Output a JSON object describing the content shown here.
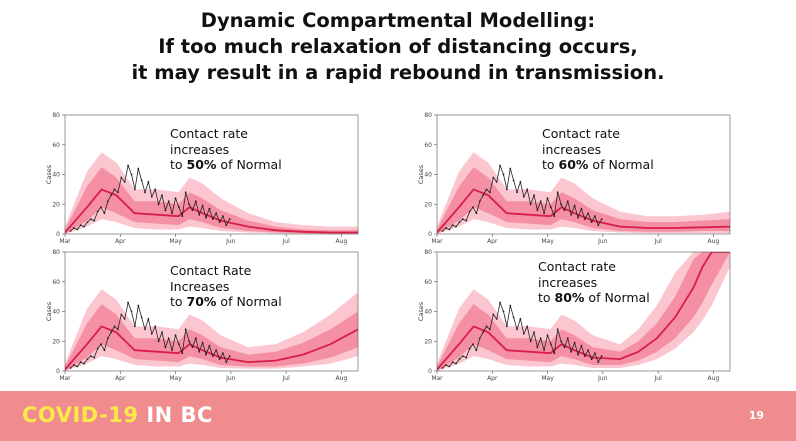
{
  "title": {
    "line1": "Dynamic Compartmental Modelling:",
    "line2": "If too much relaxation of distancing occurs,",
    "line3": "it may result in a rapid rebound in transmission."
  },
  "footer": {
    "brand_part1": "COVID-19",
    "brand_part2": "IN BC",
    "page_number": "19",
    "background_color": "#f08c8e",
    "brand_accent_color": "#fde84a"
  },
  "colors": {
    "band_outer": "#fbc6cf",
    "band_inner": "#f58fa3",
    "median_line": "#d81e4a",
    "observed_line": "#222222",
    "axis": "#555555"
  },
  "chart_data": [
    {
      "type": "line",
      "ylabel": "Cases",
      "xlabel": "",
      "x_ticks": [
        "Mar",
        "Apr",
        "May",
        "Jun",
        "Jul",
        "Aug"
      ],
      "y_ticks": [
        0,
        20,
        40,
        60,
        80
      ],
      "ylim": [
        0,
        80
      ],
      "annotation": {
        "line1": "Contact rate",
        "line2": "increases",
        "prefix": "to ",
        "pct": "50%",
        "suffix": " of Normal"
      },
      "observed": [
        2,
        4,
        3,
        6,
        5,
        8,
        10,
        9,
        15,
        18,
        14,
        22,
        26,
        30,
        28,
        38,
        35,
        46,
        40,
        30,
        44,
        36,
        28,
        35,
        25,
        30,
        20,
        26,
        16,
        22,
        14,
        24,
        18,
        12,
        28,
        20,
        16,
        22,
        13,
        19,
        11,
        17,
        10,
        14,
        8,
        12,
        6,
        10
      ],
      "series": [
        {
          "name": "median",
          "x": [
            0,
            12,
            20,
            28,
            38,
            50,
            62,
            68,
            75,
            85,
            100,
            115,
            130,
            145,
            160
          ],
          "values": [
            1,
            18,
            30,
            26,
            14,
            13,
            12,
            18,
            14,
            9,
            5,
            2.5,
            1.5,
            1,
            1
          ]
        },
        {
          "name": "inner_upper",
          "x": [
            0,
            12,
            20,
            28,
            38,
            50,
            62,
            68,
            75,
            85,
            100,
            115,
            130,
            145,
            160
          ],
          "values": [
            3,
            32,
            45,
            38,
            22,
            22,
            20,
            28,
            24,
            16,
            9,
            5,
            3,
            2.5,
            2.5
          ]
        },
        {
          "name": "inner_lower",
          "x": [
            0,
            12,
            20,
            28,
            38,
            50,
            62,
            68,
            75,
            85,
            100,
            115,
            130,
            145,
            160
          ],
          "values": [
            0,
            9,
            18,
            14,
            8,
            7,
            6,
            10,
            8,
            4,
            2,
            1,
            0.5,
            0.3,
            0.3
          ]
        },
        {
          "name": "outer_upper",
          "x": [
            0,
            12,
            20,
            28,
            38,
            50,
            62,
            68,
            75,
            85,
            100,
            115,
            130,
            145,
            160
          ],
          "values": [
            5,
            42,
            55,
            48,
            30,
            30,
            28,
            38,
            34,
            24,
            14,
            8,
            6,
            5,
            5
          ]
        },
        {
          "name": "outer_lower",
          "x": [
            0,
            12,
            20,
            28,
            38,
            50,
            62,
            68,
            75,
            85,
            100,
            115,
            130,
            145,
            160
          ],
          "values": [
            0,
            5,
            10,
            8,
            4,
            3,
            3,
            5,
            4,
            2,
            1,
            0.5,
            0.2,
            0,
            0
          ]
        }
      ]
    },
    {
      "type": "line",
      "ylabel": "Cases",
      "xlabel": "",
      "x_ticks": [
        "Mar",
        "Apr",
        "May",
        "Jun",
        "Jul",
        "Aug"
      ],
      "y_ticks": [
        0,
        20,
        40,
        60,
        80
      ],
      "ylim": [
        0,
        80
      ],
      "annotation": {
        "line1": "Contact rate",
        "line2": "increases",
        "prefix": "to ",
        "pct": "60%",
        "suffix": " of Normal"
      },
      "observed": [
        2,
        4,
        3,
        6,
        5,
        8,
        10,
        9,
        15,
        18,
        14,
        22,
        26,
        30,
        28,
        38,
        35,
        46,
        40,
        30,
        44,
        36,
        28,
        35,
        25,
        30,
        20,
        26,
        16,
        22,
        14,
        24,
        18,
        12,
        28,
        20,
        16,
        22,
        13,
        19,
        11,
        17,
        10,
        14,
        8,
        12,
        6,
        10
      ],
      "series": [
        {
          "name": "median",
          "x": [
            0,
            12,
            20,
            28,
            38,
            50,
            62,
            68,
            75,
            85,
            100,
            115,
            130,
            145,
            160
          ],
          "values": [
            1,
            18,
            30,
            26,
            14,
            13,
            12,
            18,
            14,
            9,
            5,
            4,
            4,
            4.5,
            5
          ]
        },
        {
          "name": "inner_upper",
          "x": [
            0,
            12,
            20,
            28,
            38,
            50,
            62,
            68,
            75,
            85,
            100,
            115,
            130,
            145,
            160
          ],
          "values": [
            3,
            32,
            45,
            38,
            22,
            22,
            20,
            28,
            24,
            16,
            10,
            8,
            8,
            9,
            10
          ]
        },
        {
          "name": "inner_lower",
          "x": [
            0,
            12,
            20,
            28,
            38,
            50,
            62,
            68,
            75,
            85,
            100,
            115,
            130,
            145,
            160
          ],
          "values": [
            0,
            9,
            18,
            14,
            8,
            7,
            6,
            10,
            8,
            4,
            2,
            1.5,
            1.5,
            2,
            2
          ]
        },
        {
          "name": "outer_upper",
          "x": [
            0,
            12,
            20,
            28,
            38,
            50,
            62,
            68,
            75,
            85,
            100,
            115,
            130,
            145,
            160
          ],
          "values": [
            5,
            42,
            55,
            48,
            30,
            30,
            28,
            38,
            34,
            24,
            15,
            12,
            12,
            13,
            15
          ]
        },
        {
          "name": "outer_lower",
          "x": [
            0,
            12,
            20,
            28,
            38,
            50,
            62,
            68,
            75,
            85,
            100,
            115,
            130,
            145,
            160
          ],
          "values": [
            0,
            5,
            10,
            8,
            4,
            3,
            3,
            5,
            4,
            2,
            1,
            0.5,
            0.5,
            0.5,
            0.5
          ]
        }
      ]
    },
    {
      "type": "line",
      "ylabel": "Cases",
      "xlabel": "",
      "x_ticks": [
        "Mar",
        "Apr",
        "May",
        "Jun",
        "Jul",
        "Aug"
      ],
      "y_ticks": [
        0,
        20,
        40,
        60,
        80
      ],
      "ylim": [
        0,
        80
      ],
      "annotation": {
        "line1": "Contact Rate",
        "line2": "Increases",
        "prefix": "to ",
        "pct": "70%",
        "suffix": " of Normal"
      },
      "observed": [
        2,
        4,
        3,
        6,
        5,
        8,
        10,
        9,
        15,
        18,
        14,
        22,
        26,
        30,
        28,
        38,
        35,
        46,
        40,
        30,
        44,
        36,
        28,
        35,
        25,
        30,
        20,
        26,
        16,
        22,
        14,
        24,
        18,
        12,
        28,
        20,
        16,
        22,
        13,
        19,
        11,
        17,
        10,
        14,
        8,
        12,
        6,
        10
      ],
      "series": [
        {
          "name": "median",
          "x": [
            0,
            12,
            20,
            28,
            38,
            50,
            62,
            68,
            75,
            85,
            100,
            115,
            130,
            145,
            160
          ],
          "values": [
            1,
            18,
            30,
            26,
            14,
            13,
            12,
            18,
            14,
            9,
            6,
            7,
            11,
            18,
            28
          ]
        },
        {
          "name": "inner_upper",
          "x": [
            0,
            12,
            20,
            28,
            38,
            50,
            62,
            68,
            75,
            85,
            100,
            115,
            130,
            145,
            160
          ],
          "values": [
            3,
            32,
            45,
            38,
            22,
            22,
            20,
            28,
            24,
            16,
            11,
            13,
            19,
            28,
            40
          ]
        },
        {
          "name": "inner_lower",
          "x": [
            0,
            12,
            20,
            28,
            38,
            50,
            62,
            68,
            75,
            85,
            100,
            115,
            130,
            145,
            160
          ],
          "values": [
            0,
            9,
            18,
            14,
            8,
            7,
            6,
            10,
            8,
            4,
            3,
            3,
            5,
            9,
            16
          ]
        },
        {
          "name": "outer_upper",
          "x": [
            0,
            12,
            20,
            28,
            38,
            50,
            62,
            68,
            75,
            85,
            100,
            115,
            130,
            145,
            160
          ],
          "values": [
            5,
            42,
            55,
            48,
            30,
            30,
            28,
            38,
            34,
            24,
            16,
            18,
            26,
            38,
            53
          ]
        },
        {
          "name": "outer_lower",
          "x": [
            0,
            12,
            20,
            28,
            38,
            50,
            62,
            68,
            75,
            85,
            100,
            115,
            130,
            145,
            160
          ],
          "values": [
            0,
            5,
            10,
            8,
            4,
            3,
            3,
            5,
            4,
            2,
            1.5,
            1.5,
            3,
            5,
            10
          ]
        }
      ]
    },
    {
      "type": "line",
      "ylabel": "Cases",
      "xlabel": "",
      "x_ticks": [
        "Mar",
        "Apr",
        "May",
        "Jun",
        "Jul",
        "Aug"
      ],
      "y_ticks": [
        0,
        20,
        40,
        60,
        80
      ],
      "ylim": [
        0,
        80
      ],
      "annotation": {
        "line1": "Contact rate",
        "line2": "increases",
        "prefix": "to ",
        "pct": "80%",
        "suffix": " of Normal"
      },
      "observed": [
        2,
        4,
        3,
        6,
        5,
        8,
        10,
        9,
        15,
        18,
        14,
        22,
        26,
        30,
        28,
        38,
        35,
        46,
        40,
        30,
        44,
        36,
        28,
        35,
        25,
        30,
        20,
        26,
        16,
        22,
        14,
        24,
        18,
        12,
        28,
        20,
        16,
        22,
        13,
        19,
        11,
        17,
        10,
        14,
        8,
        12,
        6,
        10
      ],
      "series": [
        {
          "name": "median",
          "x": [
            0,
            12,
            20,
            28,
            38,
            50,
            62,
            68,
            75,
            85,
            100,
            110,
            120,
            130,
            140,
            145,
            150,
            160
          ],
          "values": [
            1,
            18,
            30,
            26,
            14,
            13,
            12,
            18,
            14,
            9,
            8,
            13,
            22,
            36,
            56,
            70,
            82,
            82
          ]
        },
        {
          "name": "inner_upper",
          "x": [
            0,
            12,
            20,
            28,
            38,
            50,
            62,
            68,
            75,
            85,
            100,
            110,
            120,
            130,
            140,
            145,
            150,
            160
          ],
          "values": [
            3,
            32,
            45,
            38,
            22,
            22,
            20,
            28,
            24,
            16,
            13,
            20,
            32,
            50,
            75,
            82,
            82,
            82
          ]
        },
        {
          "name": "inner_lower",
          "x": [
            0,
            12,
            20,
            28,
            38,
            50,
            62,
            68,
            75,
            85,
            100,
            110,
            120,
            130,
            140,
            145,
            150,
            160
          ],
          "values": [
            0,
            9,
            18,
            14,
            8,
            7,
            6,
            10,
            8,
            4,
            4,
            7,
            13,
            22,
            36,
            46,
            58,
            82
          ]
        },
        {
          "name": "outer_upper",
          "x": [
            0,
            12,
            20,
            28,
            38,
            50,
            62,
            68,
            75,
            85,
            100,
            110,
            120,
            130,
            140,
            145,
            150,
            160
          ],
          "values": [
            5,
            42,
            55,
            48,
            30,
            30,
            28,
            38,
            34,
            24,
            18,
            28,
            44,
            66,
            82,
            82,
            82,
            82
          ]
        },
        {
          "name": "outer_lower",
          "x": [
            0,
            12,
            20,
            28,
            38,
            50,
            62,
            68,
            75,
            85,
            100,
            110,
            120,
            130,
            140,
            145,
            150,
            160
          ],
          "values": [
            0,
            5,
            10,
            8,
            4,
            3,
            3,
            5,
            4,
            2,
            2,
            4,
            8,
            15,
            26,
            34,
            44,
            70
          ]
        }
      ]
    }
  ]
}
